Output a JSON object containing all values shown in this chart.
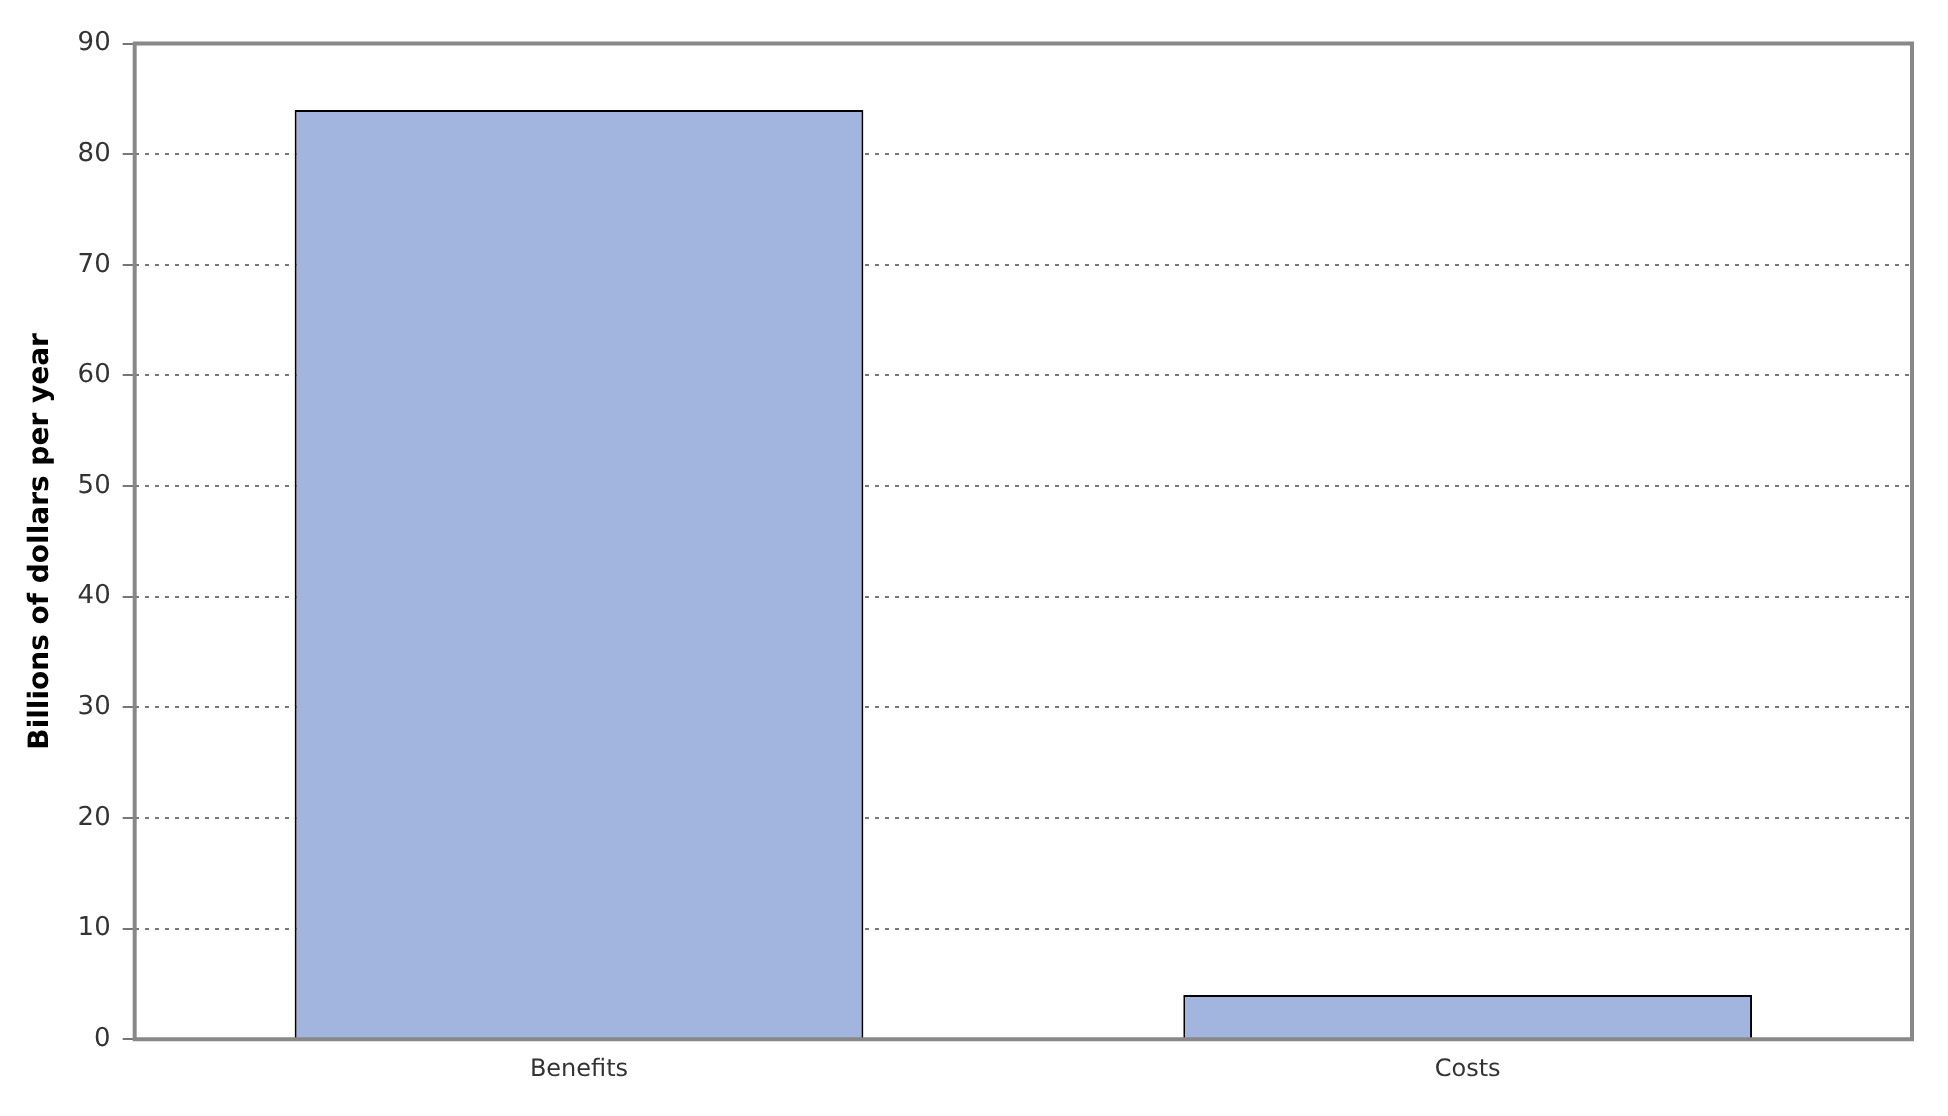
{
  "chart_data": {
    "type": "bar",
    "ylabel": "Billions of dollars per year",
    "categories": [
      "Benefits",
      "Costs"
    ],
    "values": [
      84,
      4
    ],
    "color": "#a2b5de",
    "ylim": [
      0,
      90
    ],
    "yticks": [
      0,
      10,
      20,
      30,
      40,
      50,
      60,
      70,
      80,
      90
    ],
    "grid": "y",
    "legend": false
  }
}
